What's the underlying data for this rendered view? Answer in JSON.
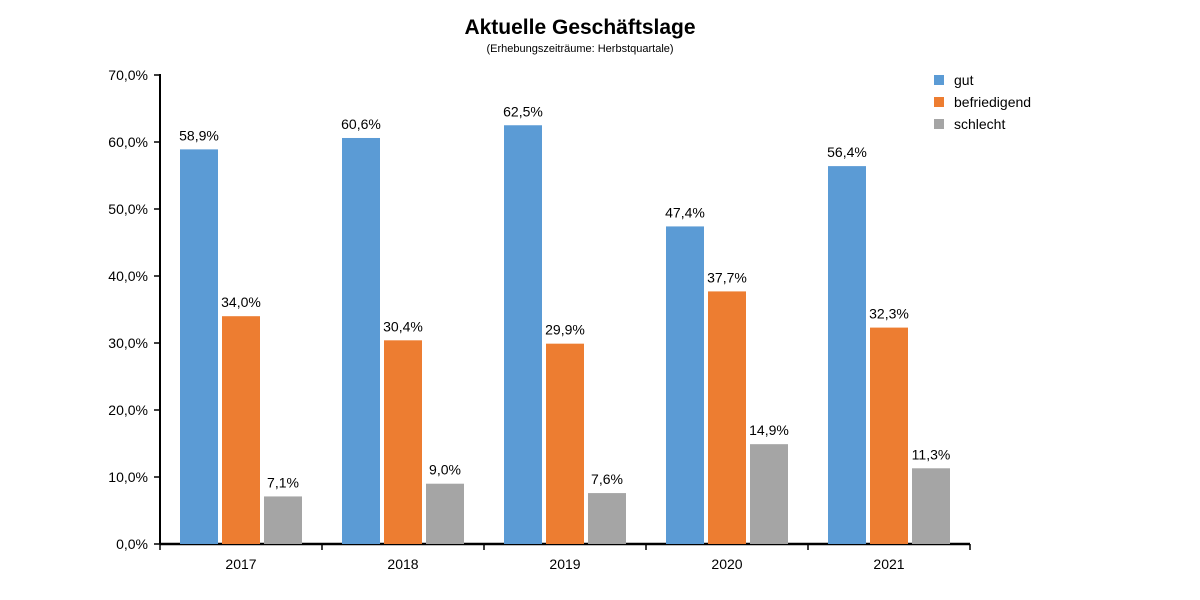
{
  "chart_data": {
    "type": "bar",
    "title": "Aktuelle Geschäftslage",
    "subtitle": "(Erhebungszeiträume: Herbstquartale)",
    "categories": [
      "2017",
      "2018",
      "2019",
      "2020",
      "2021"
    ],
    "series": [
      {
        "name": "gut",
        "color": "#5b9bd5",
        "values": [
          58.9,
          60.6,
          62.5,
          47.4,
          56.4
        ],
        "labels": [
          "58,9%",
          "60,6%",
          "62,5%",
          "47,4%",
          "56,4%"
        ]
      },
      {
        "name": "befriedigend",
        "color": "#ed7d31",
        "values": [
          34.0,
          30.4,
          29.9,
          37.7,
          32.3
        ],
        "labels": [
          "34,0%",
          "30,4%",
          "29,9%",
          "37,7%",
          "32,3%"
        ]
      },
      {
        "name": "schlecht",
        "color": "#a5a5a5",
        "values": [
          7.1,
          9.0,
          7.6,
          14.9,
          11.3
        ],
        "labels": [
          "7,1%",
          "9,0%",
          "7,6%",
          "14,9%",
          "11,3%"
        ]
      }
    ],
    "y_ticks": [
      0,
      10,
      20,
      30,
      40,
      50,
      60,
      70
    ],
    "y_tick_labels": [
      "0,0%",
      "10,0%",
      "20,0%",
      "30,0%",
      "40,0%",
      "50,0%",
      "60,0%",
      "70,0%"
    ],
    "ylim": [
      0,
      70
    ],
    "grid": false,
    "legend_position": "top-right"
  }
}
